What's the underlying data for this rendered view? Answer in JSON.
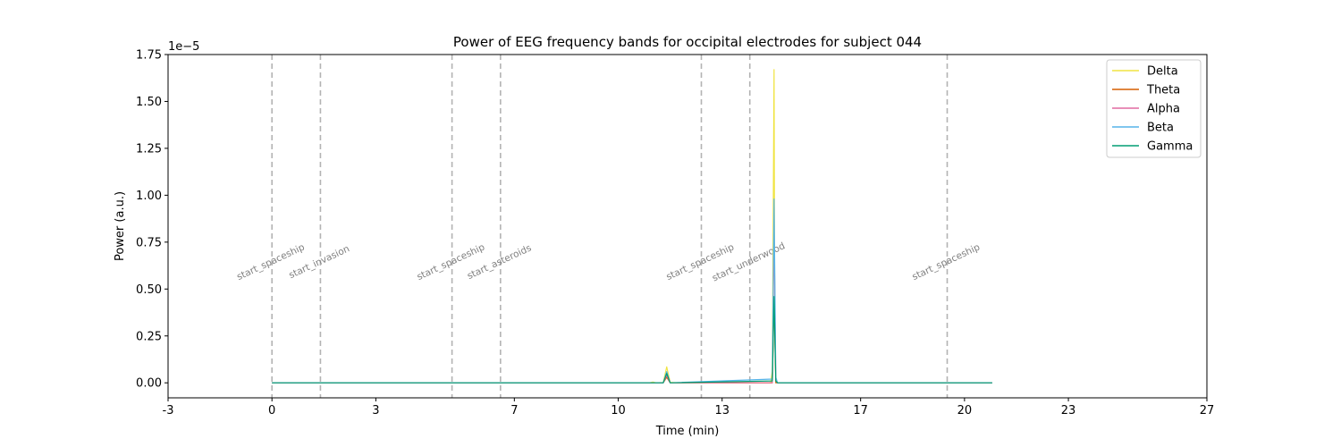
{
  "chart_data": {
    "type": "line",
    "title": "Power of EEG frequency bands for occipital electrodes for subject 044",
    "xlabel": "Time (min)",
    "ylabel": "Power (a.u.)",
    "y_offset_text": "1e−5",
    "xlim": [
      -3,
      27
    ],
    "ylim": [
      -0.08,
      1.75
    ],
    "x_ticks": [
      -3,
      0,
      3,
      7,
      10,
      13,
      17,
      20,
      23,
      27
    ],
    "x_tick_labels": [
      "-3",
      "0",
      "3",
      "7",
      "10",
      "13",
      "17",
      "20",
      "23",
      "27"
    ],
    "y_ticks": [
      0.0,
      0.25,
      0.5,
      0.75,
      1.0,
      1.25,
      1.5,
      1.75
    ],
    "y_tick_labels": [
      "0.00",
      "0.25",
      "0.50",
      "0.75",
      "1.00",
      "1.25",
      "1.50",
      "1.75"
    ],
    "grid": false,
    "legend_position": "top-right",
    "events": [
      {
        "x": 0.0,
        "label": "start_spaceship"
      },
      {
        "x": 1.4,
        "label": "start_invasion"
      },
      {
        "x": 5.2,
        "label": "start_spaceship"
      },
      {
        "x": 6.6,
        "label": "start_asteroids"
      },
      {
        "x": 12.4,
        "label": "start_spaceship"
      },
      {
        "x": 13.8,
        "label": "start_underwood"
      },
      {
        "x": 19.5,
        "label": "start_spaceship"
      }
    ],
    "series": [
      {
        "name": "Delta",
        "color": "#f0e442",
        "x": [
          0,
          10.9,
          11.0,
          11.1,
          11.3,
          11.4,
          11.5,
          11.7,
          14.4,
          14.45,
          14.5,
          14.52,
          14.55,
          14.6,
          14.7,
          20.8
        ],
        "y": [
          0,
          0,
          0.004,
          0,
          0.002,
          0.085,
          0.003,
          0,
          0,
          0.06,
          1.67,
          0.3,
          0.02,
          0,
          0,
          0
        ]
      },
      {
        "name": "Theta",
        "color": "#d55e00",
        "x": [
          0,
          11.3,
          11.4,
          11.5,
          14.45,
          14.5,
          14.55,
          14.6,
          20.8
        ],
        "y": [
          0,
          0,
          0.03,
          0,
          0,
          0.45,
          0,
          0,
          0
        ]
      },
      {
        "name": "Alpha",
        "color": "#e06aa0",
        "x": [
          0,
          11.3,
          11.4,
          11.5,
          14.45,
          14.5,
          14.55,
          14.6,
          20.8
        ],
        "y": [
          0,
          0,
          0.04,
          0,
          0,
          0.83,
          0.02,
          0,
          0
        ]
      },
      {
        "name": "Beta",
        "color": "#56b4e9",
        "x": [
          0,
          11.3,
          11.4,
          11.5,
          14.45,
          14.5,
          14.55,
          14.6,
          20.8
        ],
        "y": [
          0,
          0,
          0.06,
          0,
          0.02,
          0.98,
          0.03,
          0,
          0
        ]
      },
      {
        "name": "Gamma",
        "color": "#009e73",
        "x": [
          0,
          11.3,
          11.4,
          11.5,
          14.45,
          14.5,
          14.55,
          14.6,
          20.8
        ],
        "y": [
          0,
          0,
          0.05,
          0,
          0.01,
          0.46,
          0.01,
          0,
          0
        ]
      }
    ]
  }
}
